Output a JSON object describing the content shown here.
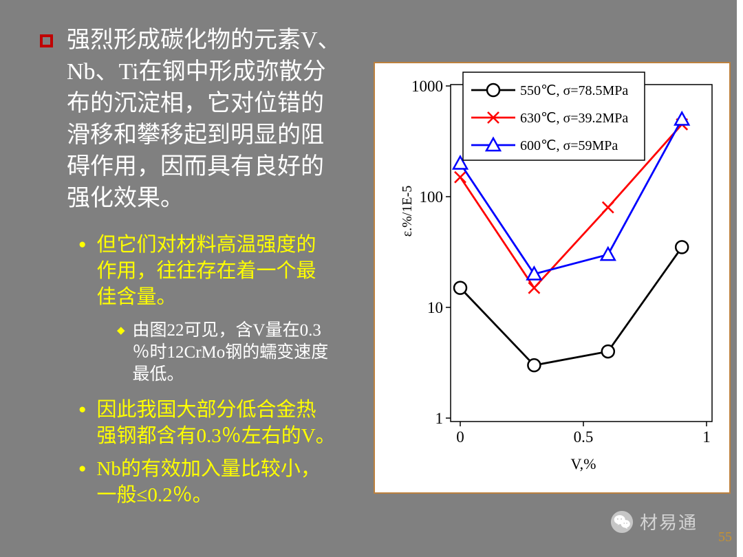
{
  "slide": {
    "background_color": "#808080",
    "page_number": "55",
    "watermark_text": "材易通"
  },
  "colors": {
    "main_text": "#ffffff",
    "emphasis_text": "#ffff00",
    "bullet_square_border": "#c00000",
    "chart_frame_border": "#bc813e"
  },
  "bullets": {
    "main": "强烈形成碳化物的元素V、\nNb、Ti在钢中形成弥散分\n布的沉淀相，它对位错的\n滑移和攀移起到明显的阻\n碍作用，因而具有良好的\n强化效果。",
    "sub1": "但它们对材料高温强度的\n作用，往往存在着一个最\n佳含量。",
    "sub1_detail": "由图22可见，含V量在0.3\n％时12CrMo钢的蠕变速度\n最低。",
    "sub2": "因此我国大部分低合金热\n强钢都含有0.3％左右的V。",
    "sub3": "Nb的有效加入量比较小，\n一般≤0.2％。"
  },
  "chart_data": {
    "type": "line",
    "title": "",
    "xlabel": "V,%",
    "ylabel": "ε.%/1E-5",
    "y_scale": "log",
    "xlim": [
      0,
      1.05
    ],
    "ylim": [
      1,
      1000
    ],
    "x_ticks": [
      "0",
      "0.5",
      "1"
    ],
    "x_tick_values": [
      0,
      0.5,
      1
    ],
    "y_ticks": [
      "1",
      "10",
      "100",
      "1000"
    ],
    "y_tick_values": [
      1,
      10,
      100,
      1000
    ],
    "grid": false,
    "legend_position": "top-center",
    "x": [
      0,
      0.3,
      0.6,
      0.9
    ],
    "series": [
      {
        "name": "550℃, σ=78.5MPa",
        "color": "#000000",
        "marker": "circle",
        "values": [
          15,
          3,
          4,
          35
        ]
      },
      {
        "name": "630℃, σ=39.2MPa",
        "color": "#ff0000",
        "marker": "x",
        "values": [
          150,
          15,
          80,
          450
        ]
      },
      {
        "name": "600℃, σ=59MPa",
        "color": "#0000ff",
        "marker": "triangle",
        "values": [
          200,
          20,
          30,
          500
        ]
      }
    ]
  }
}
